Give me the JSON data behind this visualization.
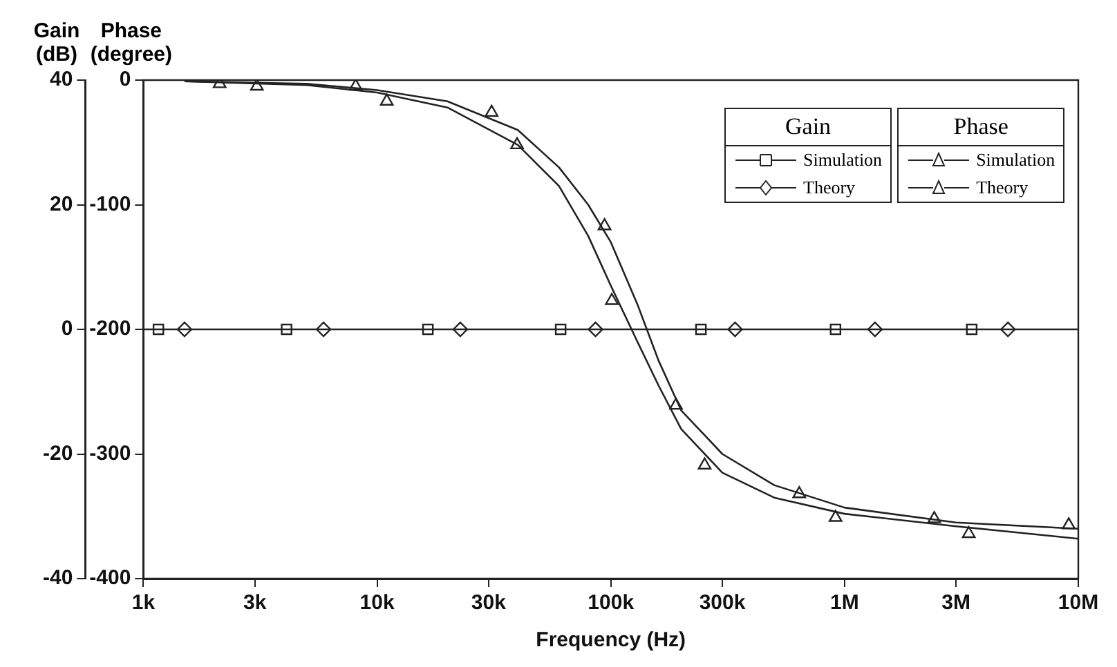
{
  "chart_data": {
    "type": "scatter",
    "xlabel": "Frequency (Hz)",
    "ylabel": "Gain\n(dB)",
    "y2label": "Phase\n(degree)",
    "legend_title": [
      "Gain",
      "Phase"
    ],
    "log": "x",
    "grid": false,
    "legend": "top right",
    "xlim": [
      1000,
      10000000
    ],
    "xticks": [
      {
        "value": 1000,
        "label": "1k"
      },
      {
        "value": 3000,
        "label": "3k"
      },
      {
        "value": 10000,
        "label": "10k"
      },
      {
        "value": 30000,
        "label": "30k"
      },
      {
        "value": 100000,
        "label": "100k"
      },
      {
        "value": 300000,
        "label": "300k"
      },
      {
        "value": 1000000,
        "label": "1M"
      },
      {
        "value": 3000000,
        "label": "3M"
      },
      {
        "value": 10000000,
        "label": "10M"
      }
    ],
    "ylim": [
      -40,
      40
    ],
    "yticks": [
      -40,
      -20,
      0,
      20,
      40
    ],
    "y2lim": [
      -400,
      0
    ],
    "y2ticks": [
      -400,
      -300,
      -200,
      -100,
      0
    ],
    "series": [
      {
        "type": "line",
        "color": "#222222",
        "marker": "none",
        "x": [
          1000,
          10000000
        ],
        "values": [
          0,
          0
        ]
      },
      {
        "type": "line",
        "color": "#222222",
        "marker": "none",
        "axis": "y2",
        "x": [
          1500,
          5000,
          10000,
          20000,
          40000,
          60000,
          80000,
          100000,
          130000,
          160000,
          200000,
          300000,
          500000,
          1000000,
          3000000,
          10000000
        ],
        "values": [
          -1,
          -3,
          -8,
          -17,
          -40,
          -70,
          -100,
          -130,
          -180,
          -225,
          -265,
          -300,
          -325,
          -343,
          -355,
          -360
        ]
      },
      {
        "type": "line",
        "color": "#222222",
        "marker": "none",
        "axis": "y2",
        "x": [
          1500,
          5000,
          10000,
          20000,
          40000,
          60000,
          80000,
          100000,
          130000,
          160000,
          200000,
          300000,
          500000,
          1000000,
          3000000,
          10000000
        ],
        "values": [
          -1,
          -4,
          -10,
          -22,
          -52,
          -85,
          -125,
          -165,
          -210,
          -245,
          -280,
          -315,
          -335,
          -348,
          -358,
          -368
        ]
      },
      {
        "name": "Simulation",
        "color": "#222222",
        "marker": "square",
        "x": [
          1160,
          4100,
          16500,
          61000,
          243000,
          915000,
          3500000
        ],
        "values": [
          0,
          0,
          0,
          0,
          0,
          0,
          0
        ]
      },
      {
        "name": "Theory",
        "color": "#222222",
        "marker": "diamond",
        "x": [
          1500,
          5900,
          22700,
          86000,
          340000,
          1350000,
          5000000
        ],
        "values": [
          0,
          0,
          0,
          0,
          0,
          0,
          0
        ]
      },
      {
        "name": "Simulation",
        "color": "#222222",
        "marker": "triangle",
        "axis": "y2",
        "x": [
          2120,
          8100,
          30900,
          94000,
          190000,
          640000,
          2420000,
          9100000
        ],
        "values": [
          -3,
          -5,
          -26,
          -117,
          -261,
          -332,
          -352,
          -357
        ]
      },
      {
        "name": "Theory",
        "color": "#222222",
        "marker": "triangle",
        "axis": "y2",
        "x": [
          3060,
          11000,
          39700,
          101000,
          252000,
          915000,
          3400000
        ],
        "values": [
          -5,
          -17,
          -52,
          -177,
          -309,
          -351,
          -364
        ]
      }
    ]
  }
}
